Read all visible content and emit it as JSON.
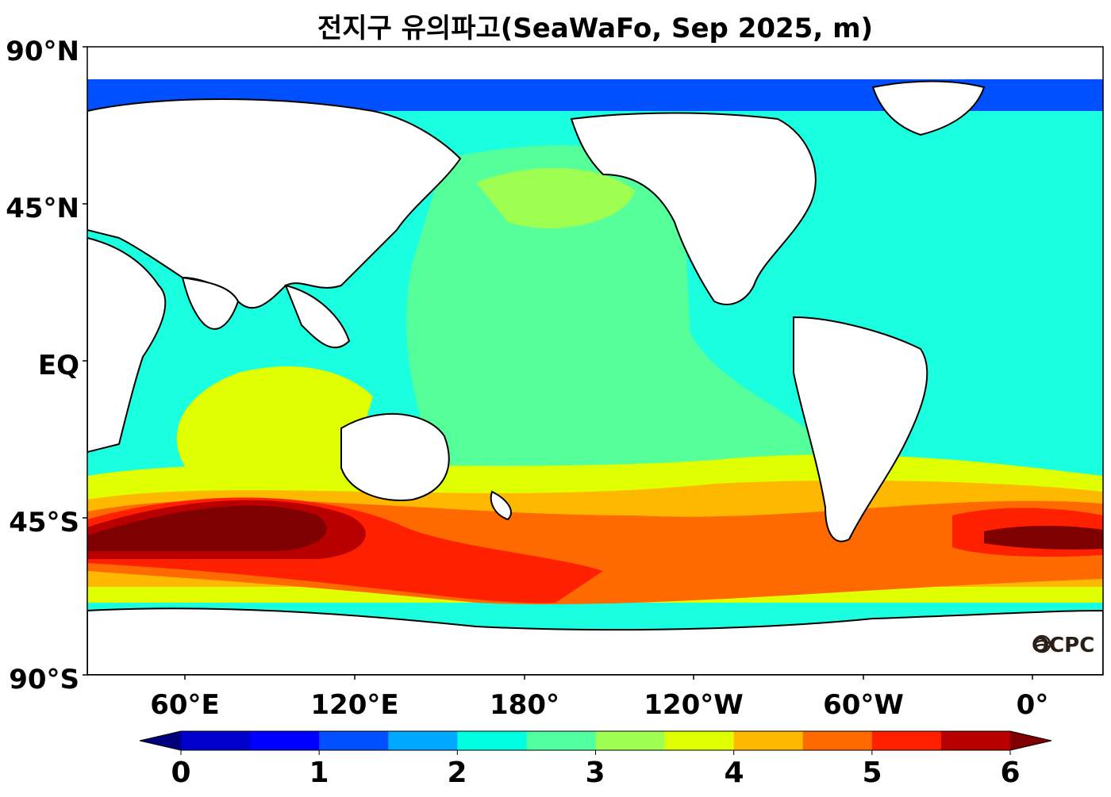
{
  "title": "전지구 유의파고(SeaWaFo, Sep 2025, m)",
  "logo": "OCPC",
  "axes": {
    "lat_ticks": [
      "90°N",
      "45°N",
      "EQ",
      "45°S",
      "90°S"
    ],
    "lon_ticks": [
      "60°E",
      "120°E",
      "180°",
      "120°W",
      "60°W",
      "0°"
    ]
  },
  "colorbar": {
    "labels": [
      "0",
      "1",
      "2",
      "3",
      "4",
      "5",
      "6"
    ],
    "colors": [
      "#00007f",
      "#0000cc",
      "#0000ff",
      "#0050ff",
      "#00a8ff",
      "#00ffe0",
      "#50ff9f",
      "#9fff50",
      "#e0ff00",
      "#ffb800",
      "#ff6a00",
      "#ff2000",
      "#b80000",
      "#7f0000"
    ]
  },
  "map_data": {
    "variable": "significant wave height",
    "unit": "m",
    "month": "Sep 2025",
    "lon_range": [
      25,
      375
    ],
    "lat_range": [
      -90,
      90
    ]
  }
}
